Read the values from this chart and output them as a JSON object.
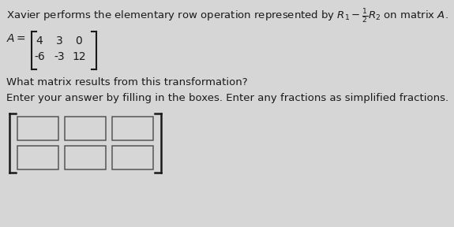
{
  "title_text": "Xavier performs the elementary row operation represented by $R_1 - \\frac{1}{2}R_2$ on matrix $A$.",
  "matrix_row1": [
    "4",
    "3",
    "0"
  ],
  "matrix_row2": [
    "-6",
    "-3",
    "12"
  ],
  "question1": "What matrix results from this transformation?",
  "question2": "Enter your answer by filling in the boxes. Enter any fractions as simplified fractions.",
  "bg_color": "#d6d6d6",
  "text_color": "#1a1a1a",
  "box_edge_color": "#555555",
  "box_face_color": "#d6d6d6",
  "font_size_title": 9.5,
  "font_size_matrix": 10,
  "font_size_q": 9.5
}
